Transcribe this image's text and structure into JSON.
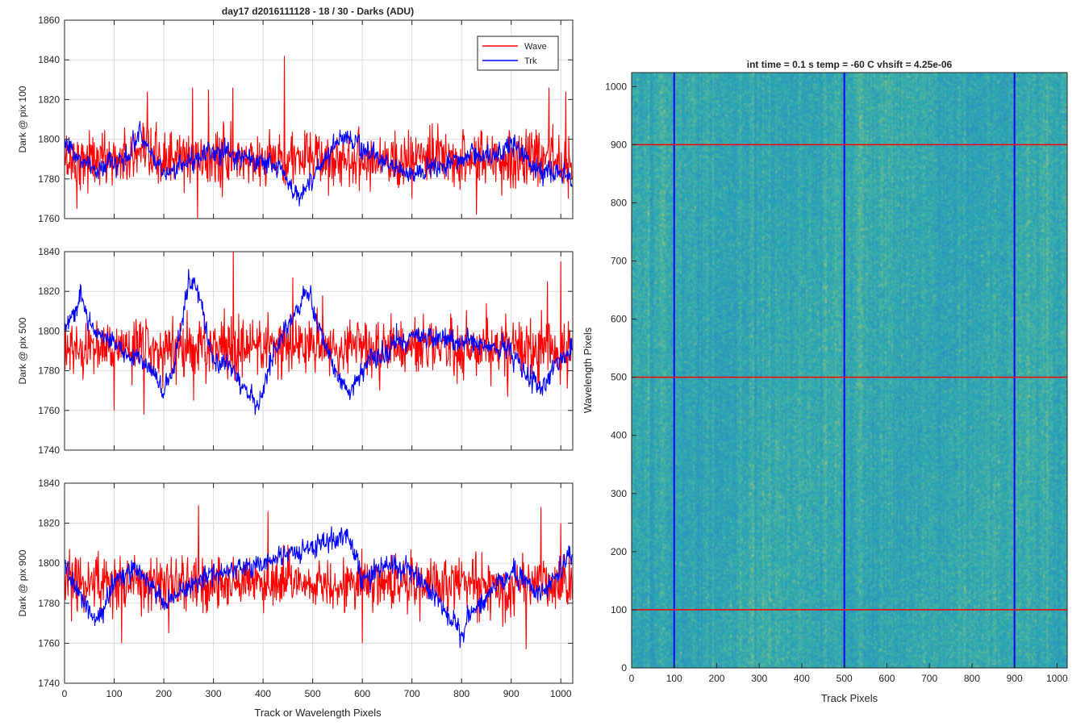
{
  "figure": {
    "title": "day17 d2016111128 - 18 / 30 - Darks (ADU)",
    "shared_xlabel": "Track or Wavelength Pixels"
  },
  "chart_data": [
    {
      "type": "line",
      "ylabel": "Dark @ pix 100",
      "xlim": [
        0,
        1024
      ],
      "ylim": [
        1760,
        1860
      ],
      "yticks": [
        1760,
        1780,
        1800,
        1820,
        1840,
        1860
      ],
      "xticks": [
        0,
        100,
        200,
        300,
        400,
        500,
        600,
        700,
        800,
        900,
        1000
      ],
      "show_xtick_labels": false,
      "grid": true,
      "legend": {
        "placement": "top-right",
        "entries": [
          "Wave",
          "Trk"
        ]
      },
      "series": [
        {
          "name": "Wave",
          "color": "#ff0000",
          "mean": 1790,
          "noise": 7,
          "spikes": [
            [
              167,
              1824
            ],
            [
              258,
              1826
            ],
            [
              290,
              1825
            ],
            [
              339,
              1826
            ],
            [
              443,
              1842
            ],
            [
              976,
              1826
            ],
            [
              1010,
              1824
            ],
            [
              268,
              1760
            ],
            [
              25,
              1765
            ],
            [
              830,
              1762
            ],
            [
              700,
              1770
            ],
            [
              1015,
              1770
            ]
          ]
        },
        {
          "name": "Trk",
          "color": "#0000ff",
          "mean": 1788,
          "noise": 4,
          "trend": [
            [
              0,
              1798
            ],
            [
              50,
              1785
            ],
            [
              130,
              1790
            ],
            [
              150,
              1805
            ],
            [
              200,
              1782
            ],
            [
              300,
              1795
            ],
            [
              380,
              1790
            ],
            [
              440,
              1785
            ],
            [
              470,
              1770
            ],
            [
              540,
              1795
            ],
            [
              560,
              1802
            ],
            [
              620,
              1792
            ],
            [
              700,
              1782
            ],
            [
              800,
              1790
            ],
            [
              870,
              1792
            ],
            [
              900,
              1798
            ],
            [
              950,
              1784
            ],
            [
              1024,
              1782
            ]
          ]
        }
      ]
    },
    {
      "type": "line",
      "ylabel": "Dark @ pix 500",
      "xlim": [
        0,
        1024
      ],
      "ylim": [
        1740,
        1840
      ],
      "yticks": [
        1740,
        1760,
        1780,
        1800,
        1820,
        1840
      ],
      "xticks": [
        0,
        100,
        200,
        300,
        400,
        500,
        600,
        700,
        800,
        900,
        1000
      ],
      "show_xtick_labels": false,
      "grid": true,
      "series": [
        {
          "name": "Wave",
          "color": "#ff0000",
          "mean": 1792,
          "noise": 7,
          "spikes": [
            [
              340,
              1840
            ],
            [
              460,
              1827
            ],
            [
              1000,
              1835
            ],
            [
              973,
              1825
            ],
            [
              520,
              1818
            ],
            [
              100,
              1760
            ],
            [
              160,
              1758
            ],
            [
              635,
              1770
            ],
            [
              260,
              1765
            ]
          ]
        },
        {
          "name": "Trk",
          "color": "#0000ff",
          "mean": 1790,
          "noise": 4,
          "trend": [
            [
              0,
              1800
            ],
            [
              30,
              1817
            ],
            [
              60,
              1800
            ],
            [
              90,
              1795
            ],
            [
              130,
              1788
            ],
            [
              160,
              1785
            ],
            [
              200,
              1770
            ],
            [
              220,
              1780
            ],
            [
              250,
              1825
            ],
            [
              270,
              1820
            ],
            [
              300,
              1785
            ],
            [
              340,
              1780
            ],
            [
              390,
              1760
            ],
            [
              420,
              1790
            ],
            [
              490,
              1820
            ],
            [
              530,
              1790
            ],
            [
              560,
              1775
            ],
            [
              580,
              1770
            ],
            [
              610,
              1785
            ],
            [
              700,
              1798
            ],
            [
              800,
              1795
            ],
            [
              900,
              1790
            ],
            [
              955,
              1770
            ],
            [
              1000,
              1785
            ],
            [
              1024,
              1790
            ]
          ]
        }
      ]
    },
    {
      "type": "line",
      "ylabel": "Dark @ pix 900",
      "xlim": [
        0,
        1024
      ],
      "ylim": [
        1740,
        1840
      ],
      "yticks": [
        1740,
        1760,
        1780,
        1800,
        1820,
        1840
      ],
      "xticks": [
        0,
        100,
        200,
        300,
        400,
        500,
        600,
        700,
        800,
        900,
        1000
      ],
      "show_xtick_labels": true,
      "grid": true,
      "series": [
        {
          "name": "Wave",
          "color": "#ff0000",
          "mean": 1790,
          "noise": 7,
          "spikes": [
            [
              270,
              1829
            ],
            [
              410,
              1826
            ],
            [
              930,
              1828
            ],
            [
              960,
              1828
            ],
            [
              1000,
              1820
            ],
            [
              115,
              1760
            ],
            [
              600,
              1760
            ],
            [
              930,
              1757
            ],
            [
              210,
              1765
            ]
          ]
        },
        {
          "name": "Trk",
          "color": "#0000ff",
          "mean": 1790,
          "noise": 4,
          "trend": [
            [
              0,
              1800
            ],
            [
              40,
              1780
            ],
            [
              70,
              1770
            ],
            [
              100,
              1790
            ],
            [
              140,
              1798
            ],
            [
              200,
              1780
            ],
            [
              300,
              1795
            ],
            [
              400,
              1800
            ],
            [
              570,
              1815
            ],
            [
              600,
              1790
            ],
            [
              650,
              1800
            ],
            [
              700,
              1795
            ],
            [
              760,
              1780
            ],
            [
              800,
              1765
            ],
            [
              830,
              1780
            ],
            [
              900,
              1795
            ],
            [
              960,
              1785
            ],
            [
              1024,
              1805
            ]
          ]
        }
      ]
    },
    {
      "type": "heatmap",
      "title": "int time = 0.1 s   temp = -60 C   vhsift = 4.25e-06",
      "xlabel": "Track Pixels",
      "ylabel": "Wavelength Pixels",
      "xlim": [
        0,
        1024
      ],
      "ylim": [
        0,
        1024
      ],
      "xticks": [
        0,
        100,
        200,
        300,
        400,
        500,
        600,
        700,
        800,
        900,
        1000
      ],
      "yticks": [
        0,
        100,
        200,
        300,
        400,
        500,
        600,
        700,
        800,
        900,
        1000
      ],
      "colormap": [
        "#2e8dc2",
        "#2aa7b2",
        "#58b79a",
        "#b7c96a"
      ],
      "vertical_lines": {
        "x": [
          100,
          500,
          900
        ],
        "color": "#0000ff"
      },
      "horizontal_lines": {
        "y": [
          100,
          500,
          900
        ],
        "color": "#ff0000"
      }
    }
  ]
}
